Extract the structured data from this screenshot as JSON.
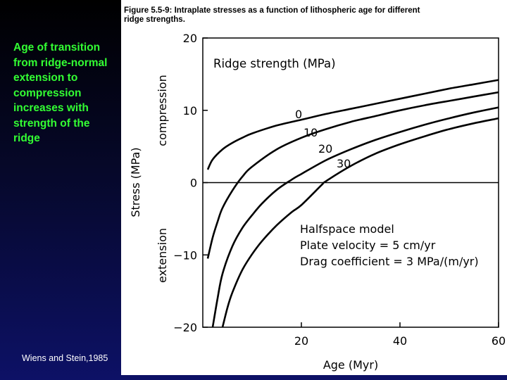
{
  "slide": {
    "bullet_text": "Age of  transition from ridge-normal extension to compression increases with strength of the ridge",
    "credit": "Wiens and Stein,1985"
  },
  "figure": {
    "caption_line1": "Figure 5.5-9: Intraplate stresses as a function of lithospheric age for different",
    "caption_line2": "ridge strengths."
  },
  "colors": {
    "background_top": "#000000",
    "background_bottom": "#0d1166",
    "bullet_text": "#33ff33",
    "credit_text": "#ffffff",
    "figure_background": "#ffffff",
    "curves": "#000000"
  },
  "chart_data": {
    "type": "line",
    "xlabel": "Age (Myr)",
    "ylabel": "Stress (MPa)",
    "ylabel_upper": "compression",
    "ylabel_lower": "extension",
    "xlim": [
      0,
      60
    ],
    "ylim": [
      -20,
      20
    ],
    "xticks": [
      "20",
      "40",
      "60"
    ],
    "yticks": [
      "20",
      "10",
      "0",
      "−10",
      "−20"
    ],
    "ytick_values": [
      20,
      10,
      0,
      -10,
      -20
    ],
    "xtick_values": [
      20,
      40,
      60
    ],
    "legend_title": "Ridge strength (MPa)",
    "model_text": [
      "Halfspace model",
      "Plate velocity = 5 cm/yr",
      "Drag coefficient = 3 MPa/(m/yr)"
    ],
    "series": [
      {
        "name": "0",
        "x": [
          1,
          2,
          4,
          6,
          8,
          10,
          15,
          20,
          25,
          30,
          35,
          40,
          45,
          50,
          55,
          60
        ],
        "y": [
          1.8,
          3.2,
          4.6,
          5.5,
          6.2,
          6.8,
          7.9,
          8.7,
          9.5,
          10.2,
          10.9,
          11.6,
          12.3,
          13.0,
          13.6,
          14.2
        ]
      },
      {
        "name": "10",
        "x": [
          1,
          2,
          3,
          4,
          6,
          8,
          10,
          15,
          20,
          25,
          30,
          35,
          40,
          45,
          50,
          55,
          60
        ],
        "y": [
          -10.5,
          -7.6,
          -5.4,
          -3.5,
          -1.1,
          0.8,
          2.2,
          4.6,
          6.2,
          7.4,
          8.4,
          9.2,
          10.0,
          10.7,
          11.3,
          11.9,
          12.5
        ]
      },
      {
        "name": "20",
        "x": [
          2,
          3,
          4,
          6,
          8,
          10,
          12,
          15,
          18,
          20,
          25,
          30,
          35,
          40,
          45,
          50,
          55,
          60
        ],
        "y": [
          -20,
          -16,
          -12.6,
          -8.8,
          -6.3,
          -4.5,
          -2.9,
          -1.0,
          0.4,
          1.2,
          3.1,
          4.6,
          5.9,
          7.0,
          8.0,
          8.9,
          9.7,
          10.4
        ]
      },
      {
        "name": "30",
        "x": [
          4,
          5,
          6,
          8,
          10,
          12,
          15,
          18,
          20,
          24,
          25,
          30,
          35,
          40,
          45,
          50,
          55,
          60
        ],
        "y": [
          -20,
          -17.3,
          -15.2,
          -12.1,
          -9.9,
          -8.1,
          -5.9,
          -4.1,
          -3.1,
          -0.4,
          0.2,
          2.3,
          4.0,
          5.3,
          6.4,
          7.4,
          8.2,
          8.9
        ]
      }
    ]
  }
}
